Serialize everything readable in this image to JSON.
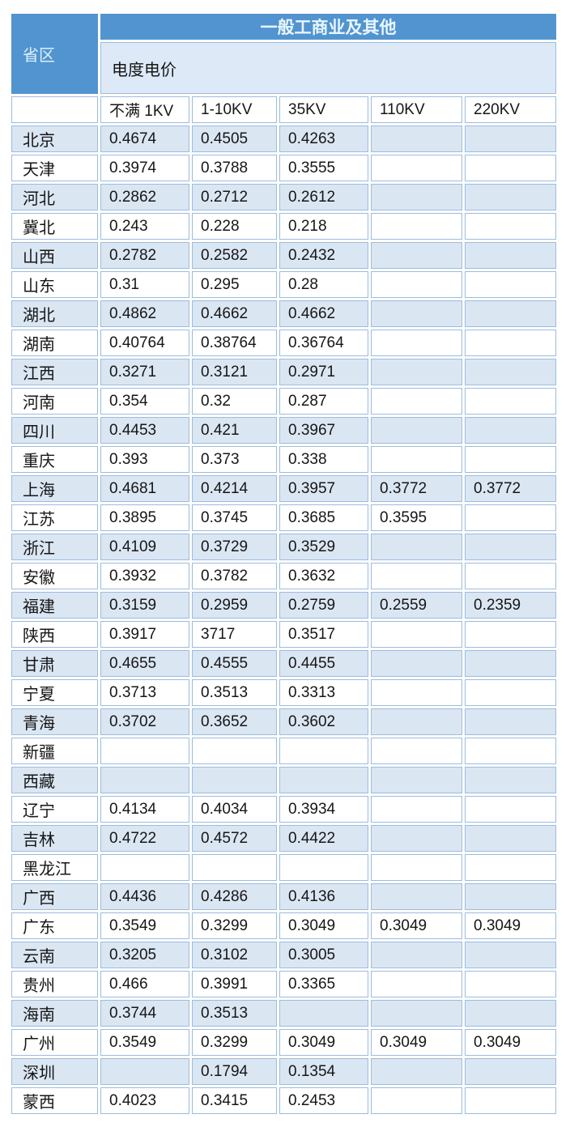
{
  "colors": {
    "header_blue": "#5294cf",
    "header_text": "#e9f6fd",
    "subheader_bg": "#dde9f6",
    "row_alt_blue": "#dbe6f3",
    "cell_border": "#9cbcdc"
  },
  "table": {
    "top_header": "一般工商业及其他",
    "corner_header": "省区",
    "sub_header": "电度电价",
    "columns": [
      "不满 1KV",
      "1-10KV",
      "35KV",
      "110KV",
      "220KV"
    ],
    "rows": [
      {
        "province": "北京",
        "values": [
          "0.4674",
          "0.4505",
          "0.4263",
          "",
          ""
        ]
      },
      {
        "province": "天津",
        "values": [
          "0.3974",
          "0.3788",
          "0.3555",
          "",
          ""
        ]
      },
      {
        "province": "河北",
        "values": [
          "0.2862",
          "0.2712",
          "0.2612",
          "",
          ""
        ]
      },
      {
        "province": "冀北",
        "values": [
          "0.243",
          "0.228",
          "0.218",
          "",
          ""
        ]
      },
      {
        "province": "山西",
        "values": [
          "0.2782",
          "0.2582",
          "0.2432",
          "",
          ""
        ]
      },
      {
        "province": "山东",
        "values": [
          "0.31",
          "0.295",
          "0.28",
          "",
          ""
        ]
      },
      {
        "province": "湖北",
        "values": [
          "0.4862",
          "0.4662",
          "0.4662",
          "",
          ""
        ]
      },
      {
        "province": "湖南",
        "values": [
          "0.40764",
          "0.38764",
          "0.36764",
          "",
          ""
        ]
      },
      {
        "province": "江西",
        "values": [
          "0.3271",
          "0.3121",
          "0.2971",
          "",
          ""
        ]
      },
      {
        "province": "河南",
        "values": [
          "0.354",
          "0.32",
          "0.287",
          "",
          ""
        ]
      },
      {
        "province": "四川",
        "values": [
          "0.4453",
          "0.421",
          "0.3967",
          "",
          ""
        ]
      },
      {
        "province": "重庆",
        "values": [
          "0.393",
          "0.373",
          "0.338",
          "",
          ""
        ]
      },
      {
        "province": "上海",
        "values": [
          "0.4681",
          "0.4214",
          "0.3957",
          "0.3772",
          "0.3772"
        ]
      },
      {
        "province": "江苏",
        "values": [
          "0.3895",
          "0.3745",
          "0.3685",
          "0.3595",
          ""
        ]
      },
      {
        "province": "浙江",
        "values": [
          "0.4109",
          "0.3729",
          "0.3529",
          "",
          ""
        ]
      },
      {
        "province": "安徽",
        "values": [
          "0.3932",
          "0.3782",
          "0.3632",
          "",
          ""
        ]
      },
      {
        "province": "福建",
        "values": [
          "0.3159",
          "0.2959",
          "0.2759",
          "0.2559",
          "0.2359"
        ]
      },
      {
        "province": "陕西",
        "values": [
          "0.3917",
          "3717",
          "0.3517",
          "",
          ""
        ]
      },
      {
        "province": "甘肃",
        "values": [
          "0.4655",
          "0.4555",
          "0.4455",
          "",
          ""
        ]
      },
      {
        "province": "宁夏",
        "values": [
          "0.3713",
          "0.3513",
          "0.3313",
          "",
          ""
        ]
      },
      {
        "province": "青海",
        "values": [
          "0.3702",
          "0.3652",
          "0.3602",
          "",
          ""
        ]
      },
      {
        "province": "新疆",
        "values": [
          "",
          "",
          "",
          "",
          ""
        ]
      },
      {
        "province": "西藏",
        "values": [
          "",
          "",
          "",
          "",
          ""
        ]
      },
      {
        "province": "辽宁",
        "values": [
          "0.4134",
          "0.4034",
          "0.3934",
          "",
          ""
        ]
      },
      {
        "province": "吉林",
        "values": [
          "0.4722",
          "0.4572",
          "0.4422",
          "",
          ""
        ]
      },
      {
        "province": "黑龙江",
        "values": [
          "",
          "",
          "",
          "",
          ""
        ]
      },
      {
        "province": "广西",
        "values": [
          "0.4436",
          "0.4286",
          "0.4136",
          "",
          ""
        ]
      },
      {
        "province": "广东",
        "values": [
          "0.3549",
          "0.3299",
          "0.3049",
          "0.3049",
          "0.3049"
        ]
      },
      {
        "province": "云南",
        "values": [
          "0.3205",
          "0.3102",
          "0.3005",
          "",
          ""
        ]
      },
      {
        "province": "贵州",
        "values": [
          "0.466",
          "0.3991",
          "0.3365",
          "",
          ""
        ]
      },
      {
        "province": "海南",
        "values": [
          "0.3744",
          "0.3513",
          "",
          "",
          ""
        ]
      },
      {
        "province": "广州",
        "values": [
          "0.3549",
          "0.3299",
          "0.3049",
          "0.3049",
          "0.3049"
        ]
      },
      {
        "province": "深圳",
        "values": [
          "",
          "0.1794",
          "0.1354",
          "",
          ""
        ]
      },
      {
        "province": "蒙西",
        "values": [
          "0.4023",
          "0.3415",
          "0.2453",
          "",
          ""
        ]
      }
    ]
  }
}
